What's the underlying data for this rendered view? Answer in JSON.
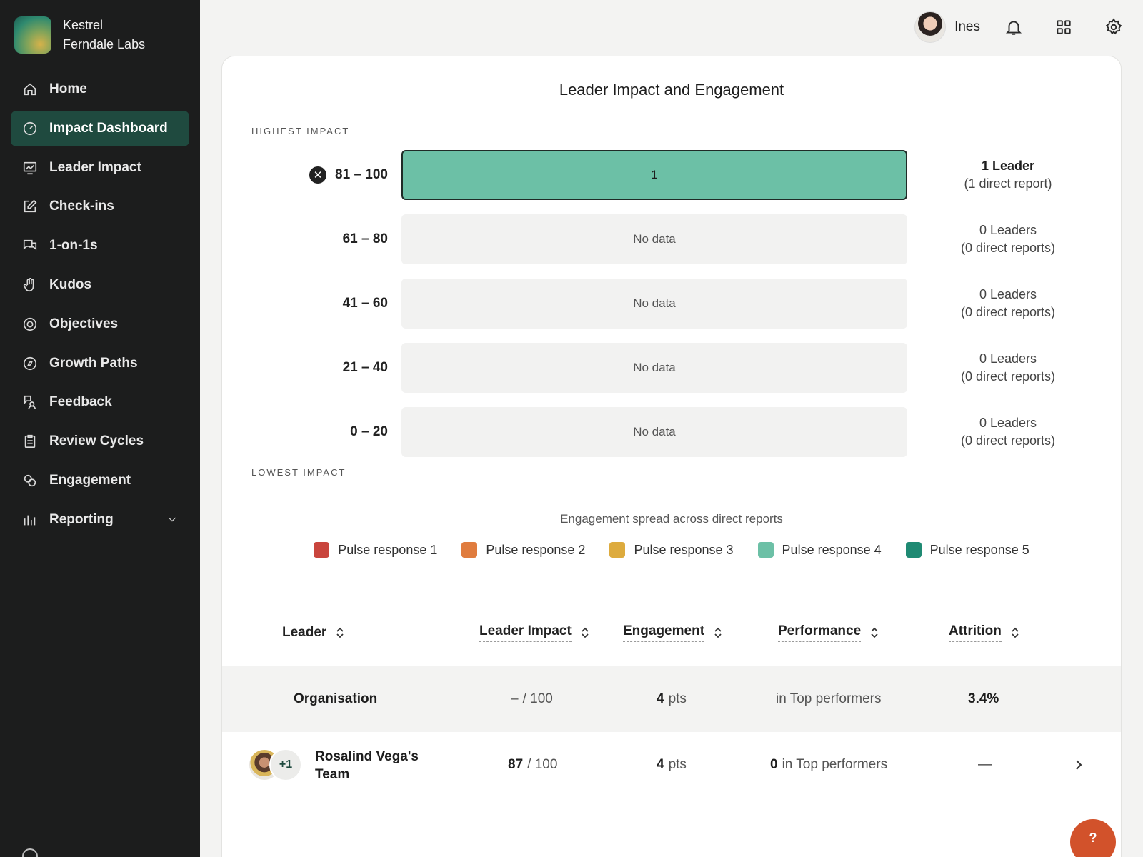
{
  "brand": {
    "line1": "Kestrel",
    "line2": "Ferndale Labs"
  },
  "nav": [
    {
      "label": "Home",
      "icon": "home-icon"
    },
    {
      "label": "Impact Dashboard",
      "icon": "gauge-icon",
      "active": true
    },
    {
      "label": "Leader Impact",
      "icon": "chart-icon"
    },
    {
      "label": "Check-ins",
      "icon": "edit-icon"
    },
    {
      "label": "1-on-1s",
      "icon": "chat-icon"
    },
    {
      "label": "Kudos",
      "icon": "hand-icon"
    },
    {
      "label": "Objectives",
      "icon": "target-icon"
    },
    {
      "label": "Growth Paths",
      "icon": "compass-icon"
    },
    {
      "label": "Feedback",
      "icon": "feedback-icon"
    },
    {
      "label": "Review Cycles",
      "icon": "clipboard-icon"
    },
    {
      "label": "Engagement",
      "icon": "engagement-icon"
    },
    {
      "label": "Reporting",
      "icon": "bar-chart-icon",
      "expandable": true
    }
  ],
  "topbar": {
    "user_name": "Ines",
    "icons": [
      "bell-icon",
      "apps-grid-icon",
      "gear-icon"
    ]
  },
  "card": {
    "title": "Leader Impact and Engagement",
    "highest_label": "HIGHEST IMPACT",
    "lowest_label": "LOWEST IMPACT",
    "rows": [
      {
        "range": "81 – 100",
        "bar_text": "1",
        "count_line1": "1 Leader",
        "count_line2": "(1 direct report)",
        "filled": true
      },
      {
        "range": "61 – 80",
        "bar_text": "No data",
        "count_line1": "0 Leaders",
        "count_line2": "(0 direct reports)"
      },
      {
        "range": "41 – 60",
        "bar_text": "No data",
        "count_line1": "0 Leaders",
        "count_line2": "(0 direct reports)"
      },
      {
        "range": "21 – 40",
        "bar_text": "No data",
        "count_line1": "0 Leaders",
        "count_line2": "(0 direct reports)"
      },
      {
        "range": "0 – 20",
        "bar_text": "No data",
        "count_line1": "0 Leaders",
        "count_line2": "(0 direct reports)"
      }
    ],
    "engagement_subtitle": "Engagement spread across direct reports",
    "legend": [
      {
        "label": "Pulse response 1",
        "color": "#c9453d"
      },
      {
        "label": "Pulse response 2",
        "color": "#e07c3e"
      },
      {
        "label": "Pulse response 3",
        "color": "#ddab3e"
      },
      {
        "label": "Pulse response 4",
        "color": "#6cc0a6"
      },
      {
        "label": "Pulse response 5",
        "color": "#1f8a73"
      }
    ]
  },
  "table": {
    "headers": {
      "leader": "Leader",
      "impact": "Leader Impact",
      "engagement": "Engagement",
      "performance": "Performance",
      "attrition": "Attrition"
    },
    "org_row": {
      "name": "Organisation",
      "impact_value": "–",
      "impact_suffix": "/ 100",
      "engagement_value": "4",
      "engagement_suffix": "pts",
      "performance_text": "in Top performers",
      "attrition": "3.4%"
    },
    "team_row": {
      "name_line1": "Rosalind Vega's",
      "name_line2": "Team",
      "extra_count": "+1",
      "impact_value": "87",
      "impact_suffix": "/ 100",
      "engagement_value": "4",
      "engagement_suffix": "pts",
      "performance_value": "0",
      "performance_text": "in Top performers",
      "attrition": "—"
    }
  },
  "help_label": "?"
}
